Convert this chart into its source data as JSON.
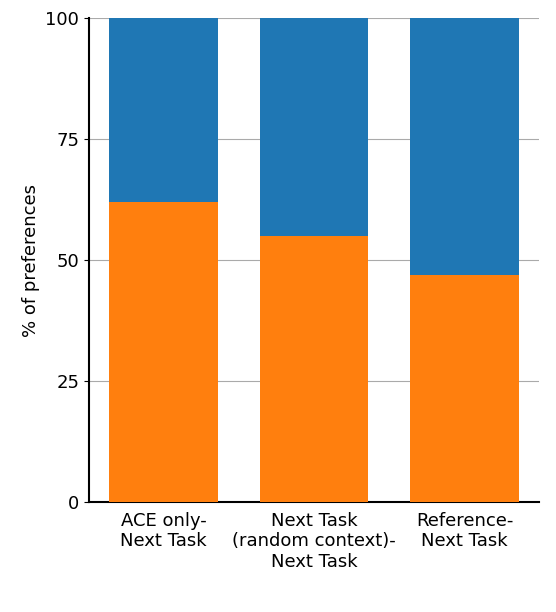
{
  "categories": [
    "ACE only-\nNext Task",
    "Next Task\n(random context)-\nNext Task",
    "Reference-\nNext Task"
  ],
  "orange_values": [
    62,
    55,
    47
  ],
  "blue_values": [
    38,
    45,
    53
  ],
  "orange_color": "#ff7f0e",
  "blue_color": "#1f77b4",
  "ylabel": "% of preferences",
  "ylim": [
    0,
    100
  ],
  "yticks": [
    0,
    25,
    50,
    75,
    100
  ],
  "bar_width": 0.72,
  "grid_color": "#aaaaaa",
  "background_color": "#ffffff",
  "spine_linewidth": 1.5,
  "tick_labelsize": 13,
  "ylabel_fontsize": 13
}
